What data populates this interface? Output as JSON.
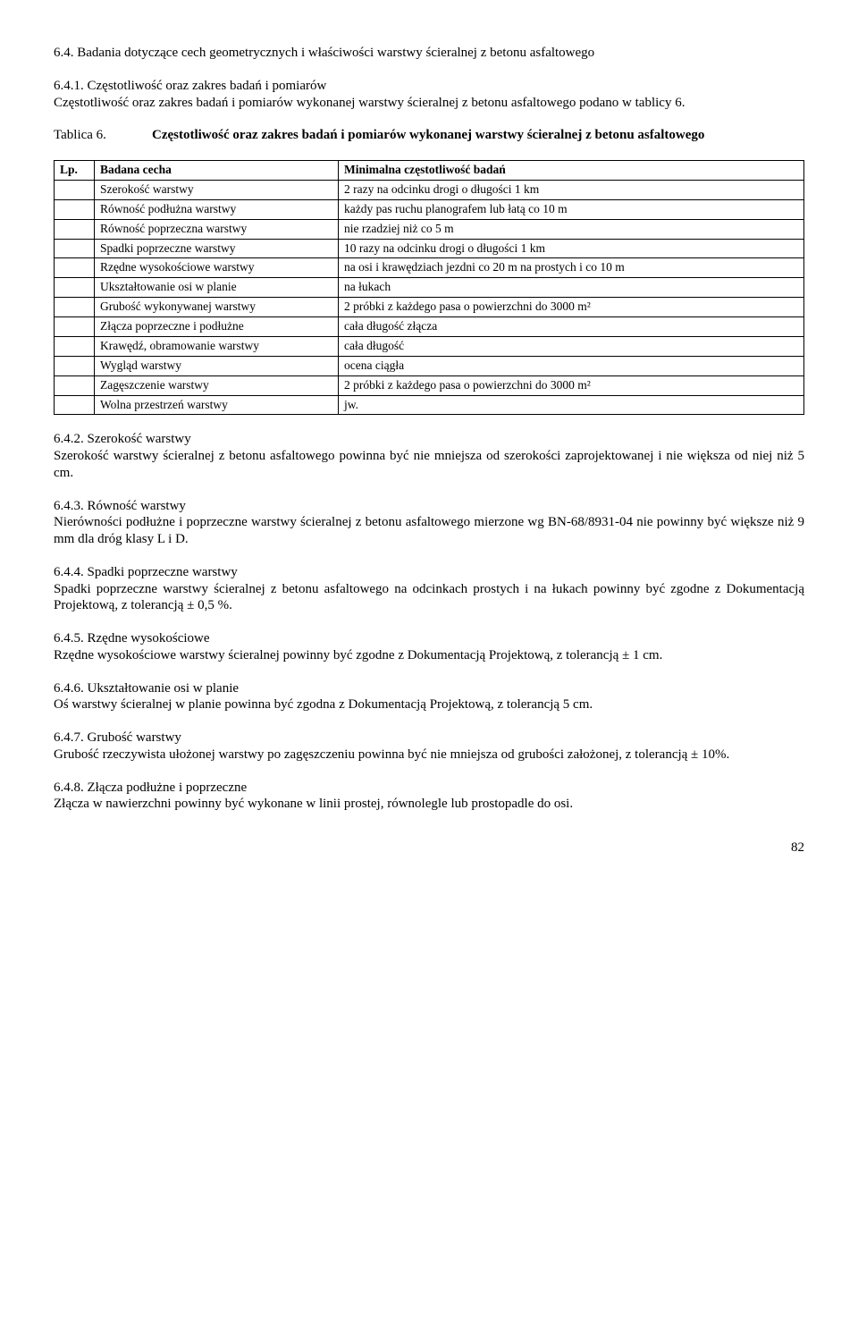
{
  "sec64": {
    "heading": "6.4. Badania dotyczące cech geometrycznych i właściwości warstwy ścieralnej z betonu asfaltowego",
    "sec641": {
      "heading": "6.4.1. Częstotliwość oraz zakres badań i pomiarów",
      "body": "Częstotliwość oraz zakres badań i pomiarów wykonanej warstwy ścieralnej z betonu asfaltowego podano w tablicy 6."
    },
    "tablica": {
      "label": "Tablica 6.",
      "caption": "Częstotliwość oraz zakres badań i pomiarów wykonanej warstwy ścieralnej z betonu asfaltowego"
    },
    "table": {
      "header_lp": "Lp.",
      "header_cecha": "Badana cecha",
      "header_czest": "Minimalna  częstotliwość badań",
      "rows": [
        {
          "cecha": "Szerokość warstwy",
          "czest": "2 razy na odcinku drogi o długości 1 km"
        },
        {
          "cecha": "Równość podłużna warstwy",
          "czest": "każdy pas ruchu planografem lub łatą co 10 m"
        },
        {
          "cecha": "Równość poprzeczna warstwy",
          "czest": "nie rzadziej niż co 5 m"
        },
        {
          "cecha": "Spadki poprzeczne warstwy",
          "czest": "10 razy na odcinku drogi o długości 1 km"
        },
        {
          "cecha": "Rzędne wysokościowe warstwy",
          "czest": "na osi i krawędziach jezdni co 20 m na prostych i co 10 m"
        },
        {
          "cecha": "Ukształtowanie osi w planie",
          "czest": "na łukach"
        },
        {
          "cecha": "Grubość wykonywanej warstwy",
          "czest": "2 próbki z każdego pasa o powierzchni do 3000 m²"
        },
        {
          "cecha": "Złącza poprzeczne i podłużne",
          "czest": "cała długość złącza"
        },
        {
          "cecha": "Krawędź, obramowanie warstwy",
          "czest": "cała długość"
        },
        {
          "cecha": "Wygląd warstwy",
          "czest": "ocena ciągła"
        },
        {
          "cecha": "Zagęszczenie warstwy",
          "czest": "2 próbki z każdego pasa o powierzchni do 3000 m²"
        },
        {
          "cecha": "Wolna przestrzeń warstwy",
          "czest": "jw."
        }
      ]
    },
    "sec642": {
      "heading": "6.4.2.  Szerokość warstwy",
      "body": "Szerokość warstwy ścieralnej z betonu asfaltowego powinna być nie mniejsza od szerokości zaprojektowanej i nie większa od niej niż 5 cm."
    },
    "sec643": {
      "heading": "6.4.3.  Równość warstwy",
      "body": "Nierówności podłużne i poprzeczne warstwy ścieralnej z betonu asfaltowego mierzone wg BN-68/8931-04 nie powinny być większe niż 9 mm dla dróg klasy L i D."
    },
    "sec644": {
      "heading": "6.4.4.  Spadki poprzeczne warstwy",
      "body": "Spadki poprzeczne warstwy ścieralnej z betonu asfaltowego na odcinkach prostych i na łukach powinny być zgodne z Dokumentacją Projektową, z tolerancją ± 0,5 %."
    },
    "sec645": {
      "heading": "6.4.5.  Rzędne wysokościowe",
      "body": "Rzędne wysokościowe warstwy ścieralnej powinny być zgodne z Dokumentacją Projektową, z tolerancją ± 1 cm."
    },
    "sec646": {
      "heading": "6.4.6.  Ukształtowanie osi w planie",
      "body": "Oś warstwy ścieralnej w planie powinna być zgodna z Dokumentacją Projektową, z tolerancją 5 cm."
    },
    "sec647": {
      "heading": "6.4.7.  Grubość warstwy",
      "body": "Grubość rzeczywista ułożonej warstwy po zagęszczeniu powinna być nie mniejsza od grubości założonej, z tolerancją ± 10%."
    },
    "sec648": {
      "heading": "6.4.8.  Złącza podłużne i poprzeczne",
      "body": "Złącza w nawierzchni powinny być wykonane w linii prostej, równolegle lub prostopadle do osi."
    }
  },
  "page_number": "82"
}
